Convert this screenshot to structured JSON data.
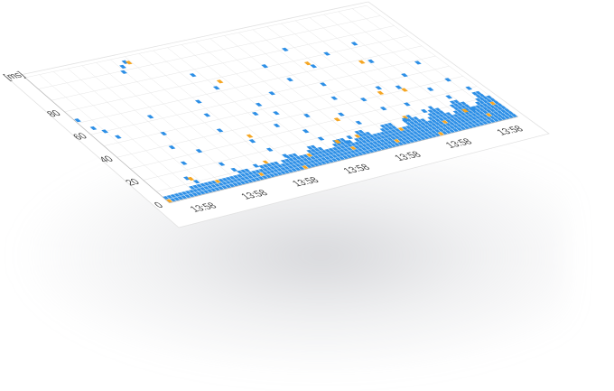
{
  "chart_data": {
    "type": "scatter",
    "title": "",
    "xlabel": "",
    "ylabel": "",
    "y_unit": "[ms]",
    "x_tick_labels": [
      "13:58",
      "13:58",
      "13:58",
      "13:58",
      "13:58",
      "13:58",
      "13:58"
    ],
    "y_ticks": [
      0,
      20,
      40,
      60,
      80
    ],
    "y_tick_labels": [
      "0",
      "20",
      "40",
      "60",
      "80"
    ],
    "ylim": [
      0,
      110
    ],
    "grid": true,
    "legend": "none",
    "colors": {
      "normal": "#2d8fe6",
      "warning": "#f5a623",
      "grid": "#e6e6e6",
      "axis": "#bbbbbb",
      "card": "#ffffff"
    },
    "series": [
      {
        "name": "",
        "color": "#2d8fe6",
        "points": [
          [
            3,
            72
          ],
          [
            9,
            64
          ],
          [
            16,
            60
          ],
          [
            22,
            54
          ],
          [
            40,
            14
          ],
          [
            45,
            10
          ],
          [
            53,
            25
          ],
          [
            59,
            38
          ],
          [
            66,
            49
          ],
          [
            72,
            63
          ],
          [
            79,
            31
          ],
          [
            85,
            18
          ],
          [
            90,
            12
          ],
          [
            96,
            99
          ],
          [
            101,
            103
          ],
          [
            108,
            106
          ],
          [
            113,
            11
          ],
          [
            119,
            42
          ],
          [
            124,
            55
          ],
          [
            131,
            66
          ],
          [
            136,
            29
          ],
          [
            142,
            20
          ],
          [
            149,
            13
          ],
          [
            155,
            86
          ],
          [
            162,
            73
          ],
          [
            168,
            48
          ],
          [
            174,
            36
          ],
          [
            181,
            54
          ],
          [
            187,
            45
          ],
          [
            193,
            27
          ],
          [
            198,
            19
          ],
          [
            205,
            60
          ],
          [
            211,
            38
          ],
          [
            217,
            12
          ],
          [
            224,
            15
          ],
          [
            229,
            81
          ],
          [
            236,
            67
          ],
          [
            242,
            33
          ],
          [
            248,
            24
          ],
          [
            254,
            46
          ],
          [
            260,
            58
          ],
          [
            266,
            90
          ],
          [
            272,
            73
          ],
          [
            278,
            40
          ],
          [
            285,
            30
          ],
          [
            291,
            18
          ],
          [
            298,
            80
          ],
          [
            304,
            46
          ],
          [
            310,
            29
          ],
          [
            317,
            21
          ],
          [
            322,
            43
          ],
          [
            328,
            67
          ],
          [
            334,
            83
          ],
          [
            341,
            51
          ],
          [
            347,
            36
          ],
          [
            354,
            27
          ],
          [
            360,
            14
          ],
          [
            367,
            58
          ],
          [
            373,
            40
          ],
          [
            381,
            30
          ]
        ]
      },
      {
        "name": "",
        "color": "#f5a623",
        "points": [
          [
            43,
            13
          ],
          [
            111,
            105
          ],
          [
            139,
            33
          ],
          [
            172,
            77
          ],
          [
            209,
            14
          ],
          [
            233,
            30
          ],
          [
            270,
            76
          ],
          [
            300,
            42
          ],
          [
            319,
            68
          ],
          [
            324,
            40
          ],
          [
            352,
            14
          ]
        ]
      }
    ]
  }
}
